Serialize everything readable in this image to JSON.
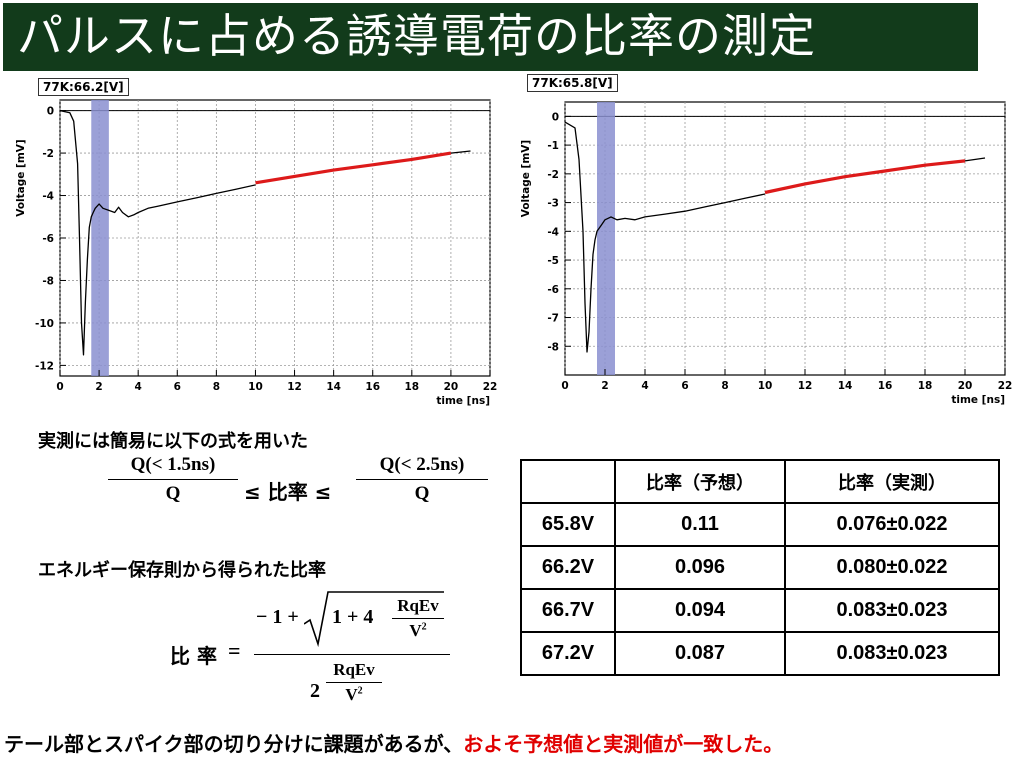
{
  "title": "パルスに占める誘導電荷の比率の測定",
  "chart_data": [
    {
      "type": "line",
      "label": "77K:66.2[V]",
      "xlabel": "time [ns]",
      "ylabel": "Voltage [mV]",
      "xlim": [
        0,
        22
      ],
      "ylim": [
        -12.5,
        0.5
      ],
      "xticks": [
        0,
        2,
        4,
        6,
        8,
        10,
        12,
        14,
        16,
        18,
        20,
        22
      ],
      "yticks": [
        0,
        -2,
        -4,
        -6,
        -8,
        -10,
        -12
      ],
      "grid": true,
      "band": [
        1.6,
        2.5
      ],
      "series": [
        {
          "x": [
            0,
            0.5,
            0.7,
            0.9,
            1.0,
            1.1,
            1.2,
            1.3,
            1.4,
            1.5,
            1.6,
            1.7,
            1.8,
            1.9,
            2.0,
            2.2,
            2.5,
            2.8,
            3.0,
            3.2,
            3.5,
            3.8,
            4.0,
            4.5,
            5.0,
            6.0,
            7.0,
            8.0,
            9.0,
            10.0
          ],
          "y": [
            0,
            -0.1,
            -0.5,
            -2.5,
            -6.0,
            -10.0,
            -11.5,
            -9.0,
            -7.0,
            -5.5,
            -5.0,
            -4.8,
            -4.6,
            -4.5,
            -4.4,
            -4.6,
            -4.7,
            -4.8,
            -4.55,
            -4.8,
            -5.0,
            -4.9,
            -4.8,
            -4.6,
            -4.5,
            -4.3,
            -4.1,
            -3.9,
            -3.7,
            -3.5
          ]
        },
        {
          "x": [
            10.0,
            12.0,
            14.0,
            16.0,
            18.0,
            20.0
          ],
          "y": [
            -3.4,
            -3.1,
            -2.8,
            -2.55,
            -2.3,
            -2.0
          ]
        },
        {
          "x": [
            20.0,
            21.0
          ],
          "y": [
            -2.0,
            -1.9
          ]
        }
      ]
    },
    {
      "type": "line",
      "label": "77K:65.8[V]",
      "xlabel": "time [ns]",
      "ylabel": "Voltage [mV]",
      "xlim": [
        0,
        22
      ],
      "ylim": [
        -9.0,
        0.5
      ],
      "xticks": [
        0,
        2,
        4,
        6,
        8,
        10,
        12,
        14,
        16,
        18,
        20,
        22
      ],
      "yticks": [
        0,
        -1,
        -2,
        -3,
        -4,
        -5,
        -6,
        -7,
        -8
      ],
      "grid": true,
      "band": [
        1.6,
        2.5
      ],
      "series": [
        {
          "x": [
            0,
            0.5,
            0.7,
            0.9,
            1.0,
            1.1,
            1.2,
            1.3,
            1.4,
            1.5,
            1.6,
            1.8,
            2.0,
            2.3,
            2.6,
            3.0,
            3.5,
            4.0,
            4.5,
            5.0,
            6.0,
            7.0,
            8.0,
            9.0,
            10.0
          ],
          "y": [
            -0.2,
            -0.4,
            -1.5,
            -4.0,
            -6.5,
            -8.2,
            -7.5,
            -6.0,
            -4.8,
            -4.3,
            -4.0,
            -3.8,
            -3.6,
            -3.5,
            -3.6,
            -3.55,
            -3.6,
            -3.5,
            -3.45,
            -3.4,
            -3.3,
            -3.15,
            -3.0,
            -2.85,
            -2.7
          ]
        },
        {
          "x": [
            10.0,
            12.0,
            14.0,
            16.0,
            18.0,
            20.0
          ],
          "y": [
            -2.65,
            -2.35,
            -2.1,
            -1.9,
            -1.7,
            -1.55
          ]
        },
        {
          "x": [
            20.0,
            21.0
          ],
          "y": [
            -1.55,
            -1.45
          ]
        }
      ]
    }
  ],
  "notes": {
    "line1": "実測には簡易に以下の式を用いた",
    "ineq_num_left": "Q(< 1.5ns)",
    "ineq_den_left": "Q",
    "ineq_mid": "≤ 比率 ≤",
    "ineq_num_right": "Q(< 2.5ns)",
    "ineq_den_right": "Q",
    "line2": "エネルギー保存則から得られた比率",
    "ratio_label": "比 率",
    "ratio_eq": "=",
    "ratio_num_prefix": "− 1 +",
    "ratio_sqrt_prefix": "1 + 4",
    "ratio_inner_num": "RqEv",
    "ratio_inner_den": "V",
    "ratio_den_prefix": "2",
    "ratio_den_num": "RqEv",
    "ratio_den_den": "V",
    "square": "2"
  },
  "table": {
    "headers": [
      "",
      "比率（予想）",
      "比率（実測）"
    ],
    "rows": [
      [
        "65.8V",
        "0.11",
        "0.076±0.022"
      ],
      [
        "66.2V",
        "0.096",
        "0.080±0.022"
      ],
      [
        "66.7V",
        "0.094",
        "0.083±0.023"
      ],
      [
        "67.2V",
        "0.087",
        "0.083±0.023"
      ]
    ]
  },
  "conclusion": {
    "black": "テール部とスパイク部の切り分けに課題があるが、",
    "red": "およそ予想値と実測値が一致した。"
  },
  "colors": {
    "title_bg": "#123b1b",
    "band": "#8a8fd0",
    "fit": "#dd1a1a",
    "trace": "#000000",
    "highlight_text": "#e00000"
  }
}
